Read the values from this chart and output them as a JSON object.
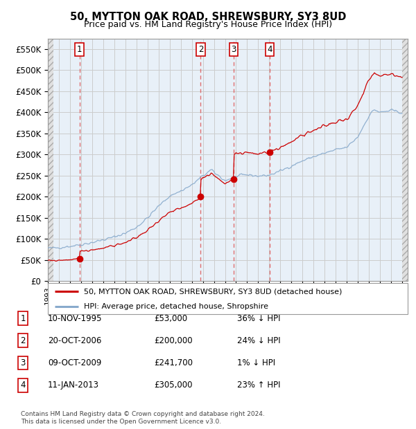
{
  "title": "50, MYTTON OAK ROAD, SHREWSBURY, SY3 8UD",
  "subtitle": "Price paid vs. HM Land Registry's House Price Index (HPI)",
  "ylim": [
    0,
    575000
  ],
  "yticks": [
    0,
    50000,
    100000,
    150000,
    200000,
    250000,
    300000,
    350000,
    400000,
    450000,
    500000,
    550000
  ],
  "ytick_labels": [
    "£0",
    "£50K",
    "£100K",
    "£150K",
    "£200K",
    "£250K",
    "£300K",
    "£350K",
    "£400K",
    "£450K",
    "£500K",
    "£550K"
  ],
  "xlim_start": 1993.0,
  "xlim_end": 2025.5,
  "background_color": "#ffffff",
  "plot_bg_color": "#e8f0f8",
  "hatch_color": "#c8c8c8",
  "grid_color": "#cccccc",
  "sale_color": "#cc0000",
  "hpi_color": "#88aacc",
  "data_start": 1993.5,
  "data_end": 2025.0,
  "sales": [
    {
      "date": 1995.86,
      "price": 53000,
      "label": "1"
    },
    {
      "date": 2006.8,
      "price": 200000,
      "label": "2"
    },
    {
      "date": 2009.77,
      "price": 241700,
      "label": "3"
    },
    {
      "date": 2013.03,
      "price": 305000,
      "label": "4"
    }
  ],
  "sale_table": [
    {
      "num": "1",
      "date": "10-NOV-1995",
      "price": "£53,000",
      "hpi": "36% ↓ HPI"
    },
    {
      "num": "2",
      "date": "20-OCT-2006",
      "price": "£200,000",
      "hpi": "24% ↓ HPI"
    },
    {
      "num": "3",
      "date": "09-OCT-2009",
      "price": "£241,700",
      "hpi": "1% ↓ HPI"
    },
    {
      "num": "4",
      "date": "11-JAN-2013",
      "price": "£305,000",
      "hpi": "23% ↑ HPI"
    }
  ],
  "legend_line1": "50, MYTTON OAK ROAD, SHREWSBURY, SY3 8UD (detached house)",
  "legend_line2": "HPI: Average price, detached house, Shropshire",
  "footer": "Contains HM Land Registry data © Crown copyright and database right 2024.\nThis data is licensed under the Open Government Licence v3.0."
}
